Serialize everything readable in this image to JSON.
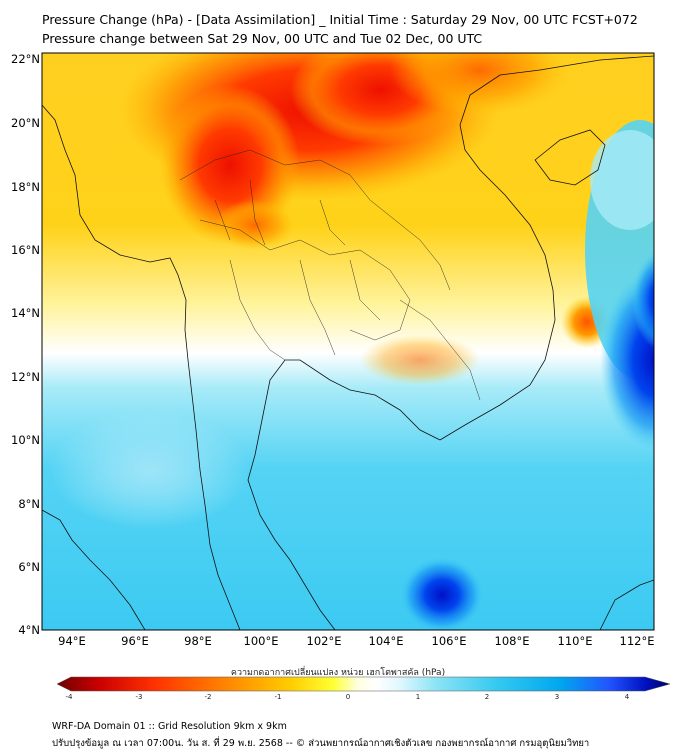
{
  "header": {
    "title": "Pressure Change (hPa) - [Data Assimilation] _ Initial Time : Saturday 29 Nov, 00 UTC FCST+072",
    "subtitle": "Pressure change between Sat 29 Nov, 00 UTC and Tue 02 Dec, 00 UTC"
  },
  "map": {
    "lat_labels": [
      "22°N",
      "20°N",
      "18°N",
      "16°N",
      "14°N",
      "12°N",
      "10°N",
      "8°N",
      "6°N",
      "4°N"
    ],
    "lon_labels": [
      "94°E",
      "96°E",
      "98°E",
      "100°E",
      "102°E",
      "104°E",
      "106°E",
      "108°E",
      "110°E",
      "112°E"
    ],
    "lat_range": [
      4,
      22.2
    ],
    "lon_range": [
      93,
      112.5
    ],
    "features": [
      {
        "name": "high-pressure-rise-north",
        "lon": 101.5,
        "lat": 20.0,
        "value": -2.5
      },
      {
        "name": "pressure-rise-myanmar-north",
        "lon": 99.0,
        "lat": 18.5,
        "value": -2.2
      },
      {
        "name": "pressure-rise-south-china-coast",
        "lon": 106.5,
        "lat": 21.5,
        "value": -2.0
      },
      {
        "name": "local-drop-gulf-of-tonkin",
        "lon": 110.3,
        "lat": 13.8,
        "value": -1.8
      },
      {
        "name": "pressure-fall-east",
        "lon": 112.3,
        "lat": 12.0,
        "value": 4.0
      },
      {
        "name": "pressure-fall-south",
        "lon": 106.0,
        "lat": 5.0,
        "value": 3.8
      }
    ]
  },
  "colorbar": {
    "title": "ความกดอากาศเปลี่ยนแปลง หน่วย เฮกโตพาสคัล (hPa)",
    "ticks": [
      "-4",
      "-3",
      "-2",
      "-1",
      "0",
      "1",
      "2",
      "3",
      "4"
    ],
    "min": -4,
    "max": 4,
    "colors": [
      "#6e0000",
      "#cc0000",
      "#ff3300",
      "#ff8800",
      "#ffcc00",
      "#ffff33",
      "#ffffdd",
      "#ffffff",
      "#dff7ff",
      "#8ae3f5",
      "#33c8f0",
      "#00a8ee",
      "#2255ff",
      "#0011c0",
      "#000066"
    ]
  },
  "footer": {
    "line1": "WRF-DA Domain 01 :: Grid Resolution 9km x 9km",
    "line2": "ปรับปรุงข้อมูล ณ เวลา 07:00น. วัน ส. ที่ 29 พ.ย. 2568 -- © ส่วนพยากรณ์อากาศเชิงตัวเลข กองพยากรณ์อากาศ กรมอุตุนิยมวิทยา"
  }
}
